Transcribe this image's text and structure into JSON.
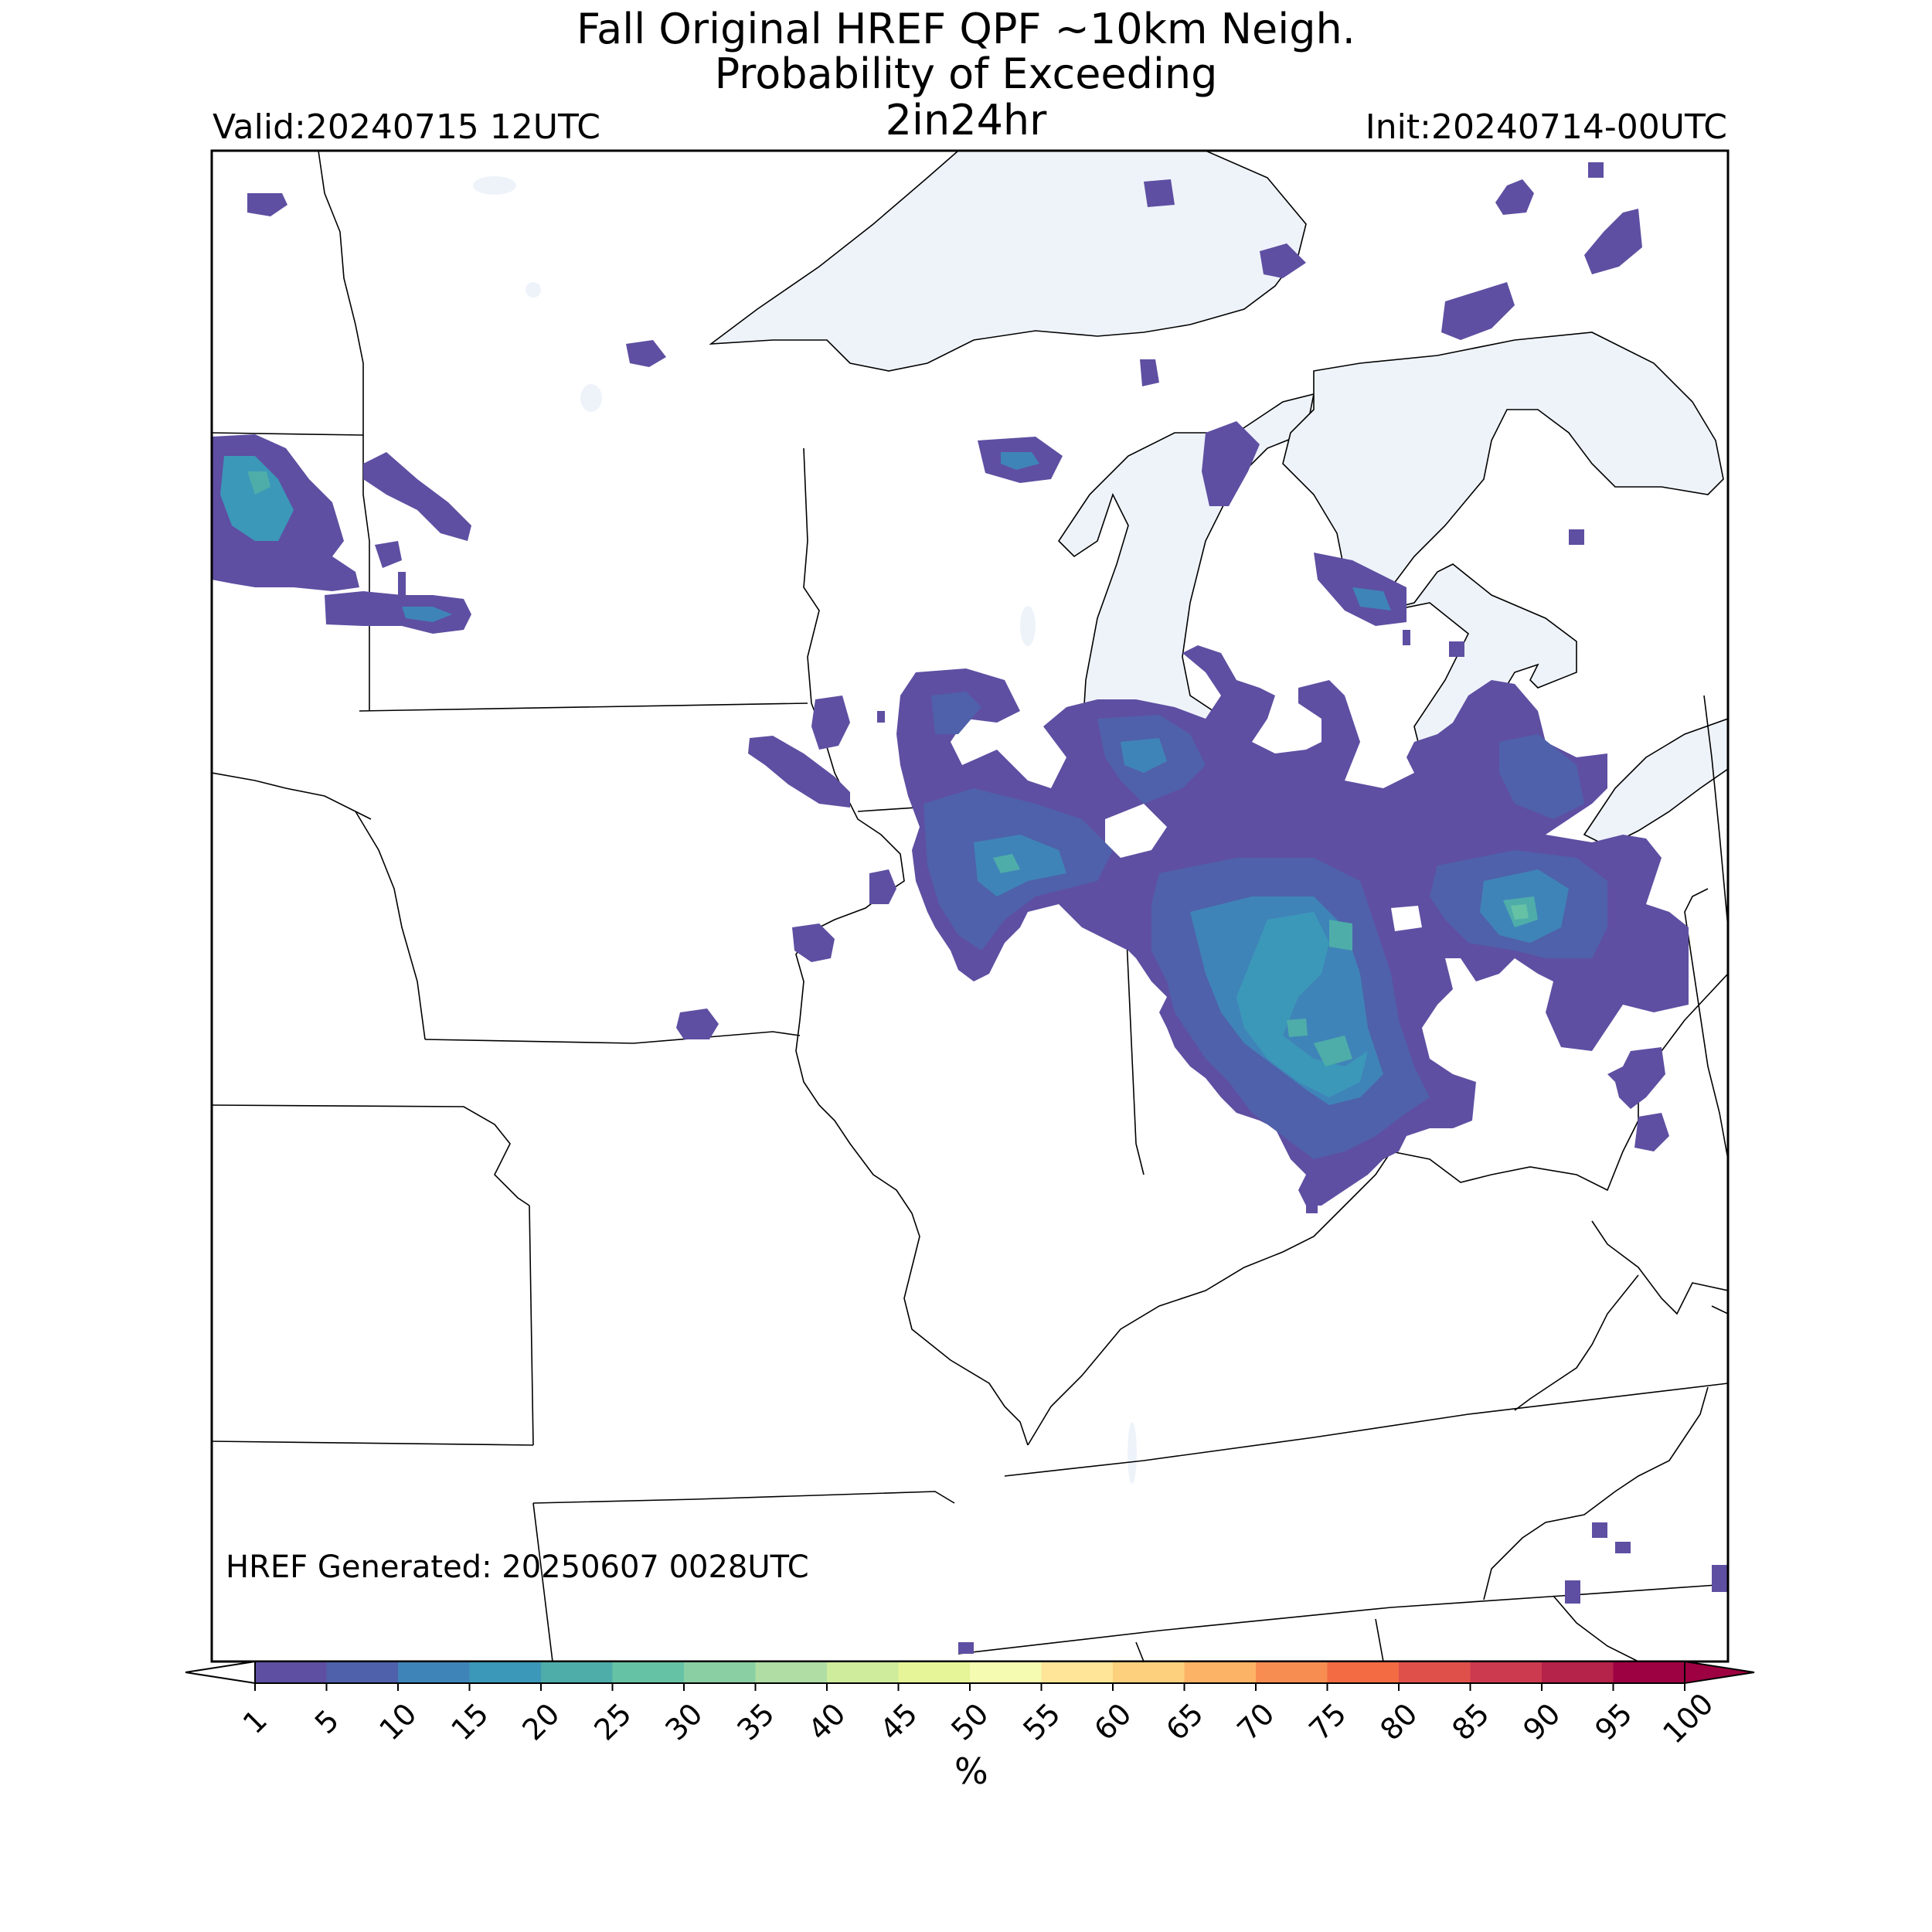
{
  "title": {
    "line1": "Fall Original HREF QPF ~10km Neigh.",
    "line2": "Probability of Exceeding",
    "line3": "2in24hr"
  },
  "header": {
    "valid": "Valid:20240715 12UTC",
    "init": "Init:20240714-00UTC"
  },
  "footer_note": "HREF Generated: 20250607 0028UTC",
  "colorbar": {
    "unit": "%",
    "ticks": [
      "1",
      "5",
      "10",
      "15",
      "20",
      "25",
      "30",
      "35",
      "40",
      "45",
      "50",
      "55",
      "60",
      "65",
      "70",
      "75",
      "80",
      "85",
      "90",
      "95",
      "100"
    ],
    "colors": [
      "#5e4fa2",
      "#4f61aa",
      "#3f84b8",
      "#3c98b9",
      "#4ead a9",
      "#66c2a5",
      "#8acfa4",
      "#afdda3",
      "#cfeb9c",
      "#e6f598",
      "#f6fbb2",
      "#fee597",
      "#fdd07e",
      "#fdb365",
      "#f88d52",
      "#f26b43",
      "#e0504a",
      "#cc3a4f",
      "#b5224a",
      "#9e0142"
    ],
    "under_color": "#ffffff",
    "over_color": "#9e0142"
  },
  "colors": {
    "water": "#eef3fa",
    "border": "#000000",
    "p1": "#5e4fa2",
    "p5": "#4f61aa",
    "p10": "#3f84b8",
    "p15": "#3c98b9",
    "p20": "#4eada9",
    "p25": "#66c2a5"
  }
}
